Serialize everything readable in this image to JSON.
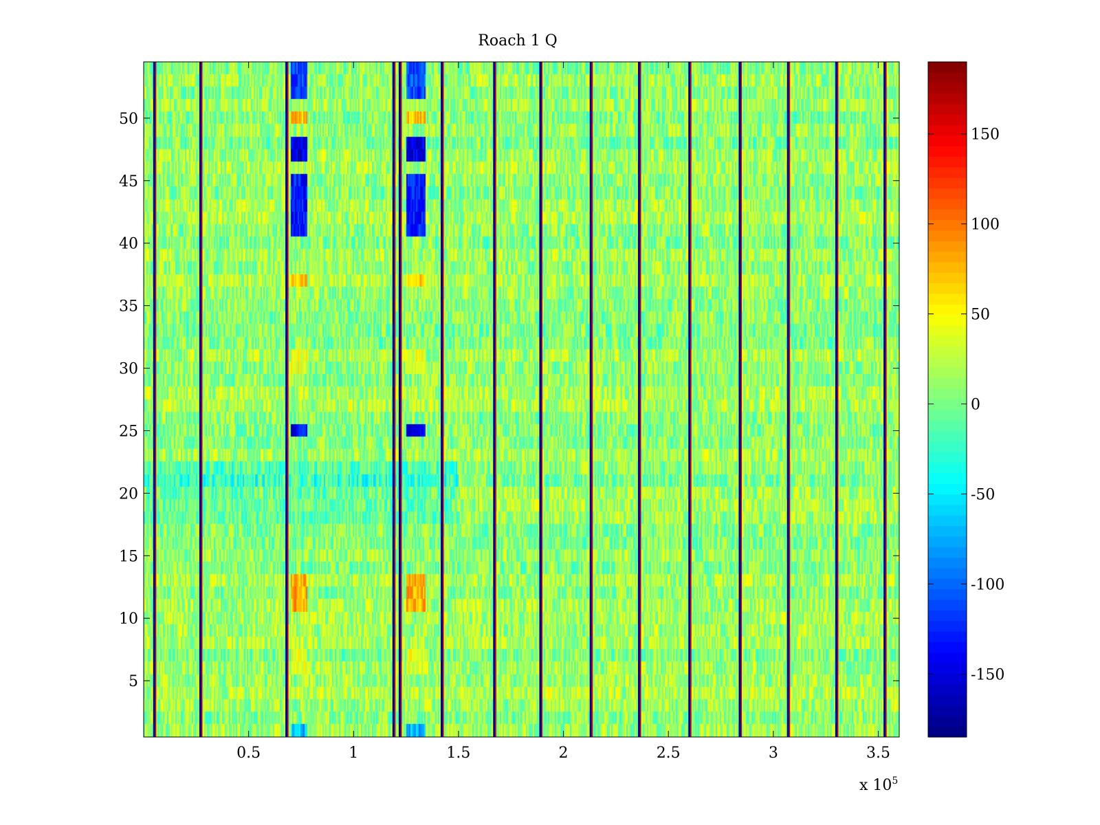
{
  "chart_data": {
    "type": "heatmap",
    "title": "Roach 1 Q",
    "xlabel": "",
    "ylabel": "",
    "x_multiplier": {
      "base": "x 10",
      "exponent": "5"
    },
    "xlim": [
      0,
      3.6
    ],
    "ylim": [
      0.5,
      54.5
    ],
    "x_ticks": [
      {
        "value": 0.5,
        "label": "0.5"
      },
      {
        "value": 1,
        "label": "1"
      },
      {
        "value": 1.5,
        "label": "1.5"
      },
      {
        "value": 2,
        "label": "2"
      },
      {
        "value": 2.5,
        "label": "2.5"
      },
      {
        "value": 3,
        "label": "3"
      },
      {
        "value": 3.5,
        "label": "3.5"
      }
    ],
    "y_ticks": [
      {
        "value": 5,
        "label": "5"
      },
      {
        "value": 10,
        "label": "10"
      },
      {
        "value": 15,
        "label": "15"
      },
      {
        "value": 20,
        "label": "20"
      },
      {
        "value": 25,
        "label": "25"
      },
      {
        "value": 30,
        "label": "30"
      },
      {
        "value": 35,
        "label": "35"
      },
      {
        "value": 40,
        "label": "40"
      },
      {
        "value": 45,
        "label": "45"
      },
      {
        "value": 50,
        "label": "50"
      }
    ],
    "rows": 54,
    "colormap": "jet",
    "clim": [
      -185,
      190
    ],
    "colorbar_ticks": [
      {
        "value": 150,
        "label": "150"
      },
      {
        "value": 100,
        "label": "100"
      },
      {
        "value": 50,
        "label": "50"
      },
      {
        "value": 0,
        "label": "0"
      },
      {
        "value": -50,
        "label": "-50"
      },
      {
        "value": -100,
        "label": "-100"
      },
      {
        "value": -150,
        "label": "-150"
      }
    ],
    "background_level": 10,
    "spike_columns_x": [
      0.05,
      0.27,
      0.68,
      1.19,
      1.22,
      1.42,
      1.67,
      1.89,
      2.13,
      2.36,
      2.6,
      2.84,
      3.07,
      3.3,
      3.53
    ],
    "bright_bands": [
      {
        "x": [
          0.7,
          0.78
        ],
        "rows": [
          [
            1,
            1,
            -70
          ],
          [
            6,
            7,
            40
          ],
          [
            11,
            13,
            80
          ],
          [
            25,
            25,
            -140
          ],
          [
            30,
            31,
            40
          ],
          [
            37,
            37,
            70
          ],
          [
            41,
            45,
            -130
          ],
          [
            47,
            48,
            -150
          ],
          [
            50,
            50,
            70
          ],
          [
            52,
            54,
            -110
          ]
        ]
      },
      {
        "x": [
          1.25,
          1.34
        ],
        "rows": [
          [
            1,
            1,
            -70
          ],
          [
            6,
            7,
            40
          ],
          [
            11,
            13,
            80
          ],
          [
            25,
            25,
            -140
          ],
          [
            30,
            31,
            40
          ],
          [
            37,
            37,
            70
          ],
          [
            41,
            45,
            -130
          ],
          [
            47,
            48,
            -150
          ],
          [
            50,
            50,
            70
          ],
          [
            52,
            54,
            -110
          ]
        ]
      }
    ]
  }
}
